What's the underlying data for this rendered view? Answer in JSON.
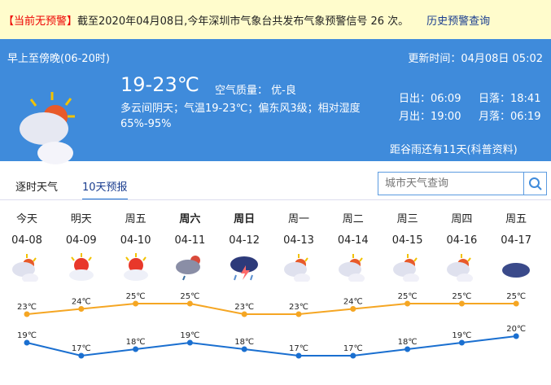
{
  "warning": {
    "tag": "【当前无预警】",
    "text": "截至2020年04月08日,今年深圳市气象台共发布气象预警信号 26 次。",
    "history_link": "历史预警查询"
  },
  "today": {
    "period": "早上至傍晚(06-20时)",
    "updated": "更新时间：04月08日 05:02",
    "temp": "19-23℃",
    "aqi": "空气质量：  优-良",
    "desc": "多云间阴天；气温19-23℃；偏东风3级；相对湿度65%-95%",
    "sunrise": "日出：06:09",
    "sunset": "日落：18:41",
    "moonrise": "月出：19:00",
    "moonset": "月落：06:19",
    "solar_term": "距谷雨还有11天(科普资料)",
    "icon": "partly-cloudy-icon"
  },
  "tabs": [
    {
      "label": "逐时天气"
    },
    {
      "label": "10天预报",
      "active": true
    }
  ],
  "search": {
    "placeholder": "城市天气查询",
    "icon": "search-icon"
  },
  "colors": {
    "high": "#f5a623",
    "low": "#1a6fd0",
    "banner": "#3f8bdb"
  },
  "forecast": [
    {
      "day": "今天",
      "date": "04-08",
      "icon": "partly-cloudy",
      "high": "23℃",
      "low": "19℃",
      "hi": 23,
      "lo": 19
    },
    {
      "day": "明天",
      "date": "04-09",
      "icon": "sunny-cloudy",
      "high": "24℃",
      "low": "17℃",
      "hi": 24,
      "lo": 17
    },
    {
      "day": "周五",
      "date": "04-10",
      "icon": "sunny-cloudy",
      "high": "25℃",
      "low": "18℃",
      "hi": 25,
      "lo": 18
    },
    {
      "day": "周六",
      "date": "04-11",
      "icon": "showers",
      "high": "25℃",
      "low": "19℃",
      "hi": 25,
      "lo": 19,
      "bold": true
    },
    {
      "day": "周日",
      "date": "04-12",
      "icon": "thunderstorm",
      "high": "23℃",
      "low": "18℃",
      "hi": 23,
      "lo": 18,
      "bold": true
    },
    {
      "day": "周一",
      "date": "04-13",
      "icon": "partly-cloudy",
      "high": "23℃",
      "low": "17℃",
      "hi": 23,
      "lo": 17
    },
    {
      "day": "周二",
      "date": "04-14",
      "icon": "partly-cloudy",
      "high": "24℃",
      "low": "17℃",
      "hi": 24,
      "lo": 17
    },
    {
      "day": "周三",
      "date": "04-15",
      "icon": "partly-cloudy",
      "high": "25℃",
      "low": "18℃",
      "hi": 25,
      "lo": 18
    },
    {
      "day": "周四",
      "date": "04-16",
      "icon": "partly-cloudy",
      "high": "25℃",
      "low": "19℃",
      "hi": 25,
      "lo": 19
    },
    {
      "day": "周五",
      "date": "04-17",
      "icon": "overcast",
      "high": "25℃",
      "low": "20℃",
      "hi": 25,
      "lo": 20
    }
  ]
}
